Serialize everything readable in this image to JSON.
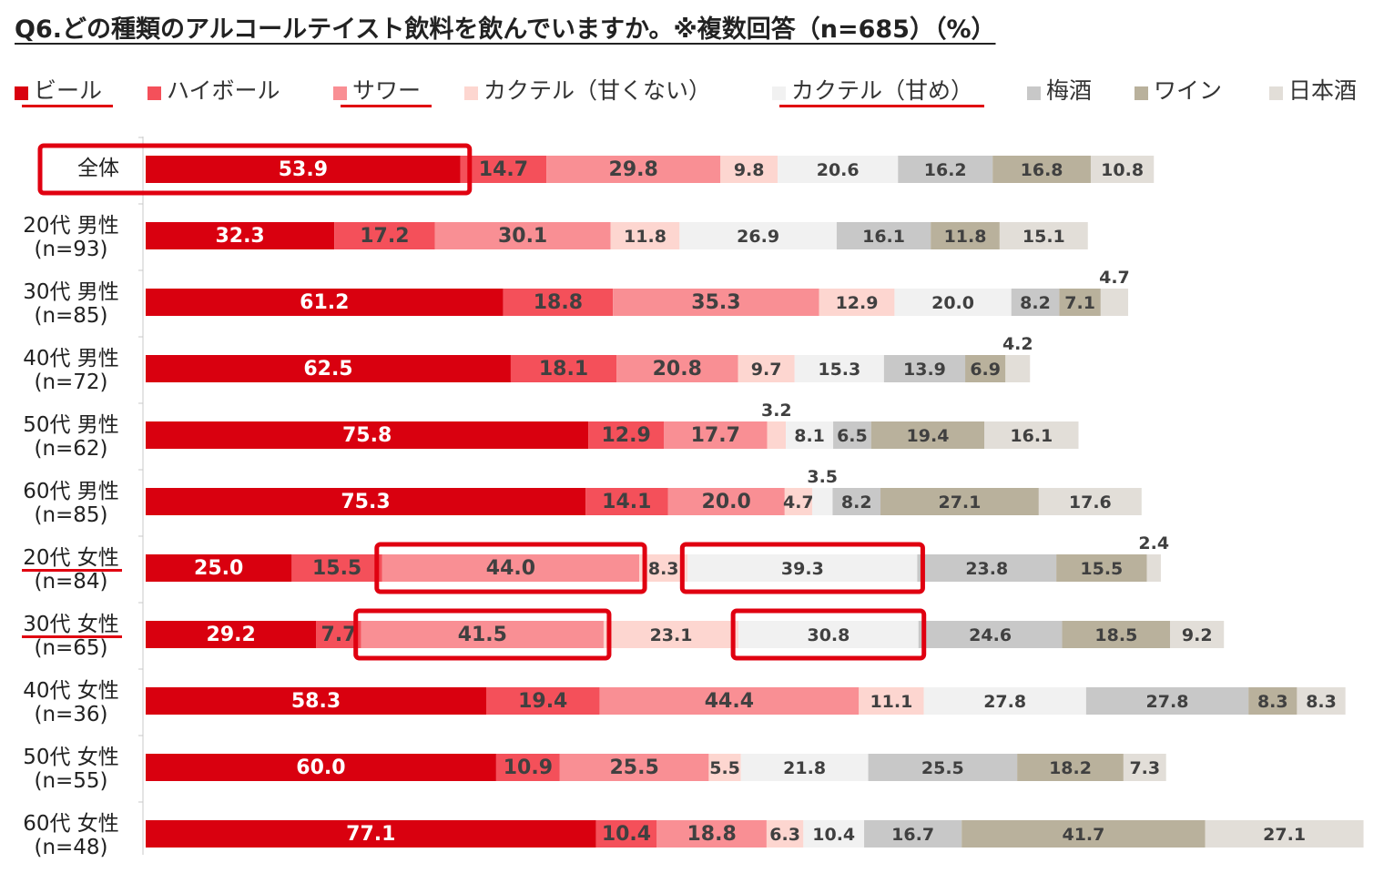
{
  "title": "Q6.どの種類のアルコールテイスト飲料を飲んでいますか。※複数回答（n=685）（%）",
  "colors": {
    "series": [
      "#d9000f",
      "#f4505a",
      "#f98f94",
      "#fdd6d0",
      "#f1f1f1",
      "#c8c8c8",
      "#b9b19c",
      "#e2ded8"
    ],
    "label_light": "#ffffff",
    "label_dark": "#404040",
    "highlight": "#e00010"
  },
  "legend_underlined": [
    "ビール",
    "サワー",
    "カクテル（甘め）"
  ],
  "chart_data": {
    "type": "bar",
    "orientation": "horizontal",
    "stacked": true,
    "title": "Q6.どの種類のアルコールテイスト飲料を飲んでいますか。※複数回答（n=685）（%）",
    "categories": [
      {
        "line1": "全体",
        "line2": ""
      },
      {
        "line1": "20代 男性",
        "line2": "(n=93)"
      },
      {
        "line1": "30代 男性",
        "line2": "(n=85)"
      },
      {
        "line1": "40代 男性",
        "line2": "(n=72)"
      },
      {
        "line1": "50代 男性",
        "line2": "(n=62)"
      },
      {
        "line1": "60代 男性",
        "line2": "(n=85)"
      },
      {
        "line1": "20代 女性",
        "line2": "(n=84)"
      },
      {
        "line1": "30代 女性",
        "line2": "(n=65)"
      },
      {
        "line1": "40代 女性",
        "line2": "(n=36)"
      },
      {
        "line1": "50代 女性",
        "line2": "(n=55)"
      },
      {
        "line1": "60代 女性",
        "line2": "(n=48)"
      }
    ],
    "underlined_categories": [
      6,
      7
    ],
    "series": [
      {
        "name": "ビール",
        "values": [
          53.9,
          32.3,
          61.2,
          62.5,
          75.8,
          75.3,
          25.0,
          29.2,
          58.3,
          60.0,
          77.1
        ]
      },
      {
        "name": "ハイボール",
        "values": [
          14.7,
          17.2,
          18.8,
          18.1,
          12.9,
          14.1,
          15.5,
          7.7,
          19.4,
          10.9,
          10.4
        ]
      },
      {
        "name": "サワー",
        "values": [
          29.8,
          30.1,
          35.3,
          20.8,
          17.7,
          20.0,
          44.0,
          41.5,
          44.4,
          25.5,
          18.8
        ]
      },
      {
        "name": "カクテル（甘くない）",
        "values": [
          9.8,
          11.8,
          12.9,
          9.7,
          3.2,
          4.7,
          8.3,
          23.1,
          11.1,
          5.5,
          6.3
        ]
      },
      {
        "name": "カクテル（甘め）",
        "values": [
          20.6,
          26.9,
          20.0,
          15.3,
          8.1,
          3.5,
          39.3,
          30.8,
          27.8,
          21.8,
          10.4
        ]
      },
      {
        "name": "梅酒",
        "values": [
          16.2,
          16.1,
          8.2,
          13.9,
          6.5,
          8.2,
          23.8,
          24.6,
          27.8,
          25.5,
          16.7
        ]
      },
      {
        "name": "ワイン",
        "values": [
          16.8,
          11.8,
          7.1,
          6.9,
          19.4,
          27.1,
          15.5,
          18.5,
          8.3,
          18.2,
          41.7
        ]
      },
      {
        "name": "日本酒",
        "values": [
          10.8,
          15.1,
          4.7,
          4.2,
          16.1,
          17.6,
          2.4,
          9.2,
          8.3,
          7.3,
          27.1
        ]
      }
    ],
    "value_labels": {
      "above_bar": [
        {
          "row": 2,
          "series": 7
        },
        {
          "row": 3,
          "series": 7
        },
        {
          "row": 4,
          "series": 3
        },
        {
          "row": 5,
          "series": 4
        },
        {
          "row": 6,
          "series": 7
        }
      ]
    },
    "highlighted_segments": [
      {
        "row": 0,
        "series": 0
      },
      {
        "row": 6,
        "series": 2
      },
      {
        "row": 6,
        "series": 4
      },
      {
        "row": 7,
        "series": 2
      },
      {
        "row": 7,
        "series": 4
      }
    ],
    "xlabel": "",
    "ylabel": "",
    "xlim": [
      0,
      212
    ],
    "grid": false,
    "legend_position": "top"
  }
}
